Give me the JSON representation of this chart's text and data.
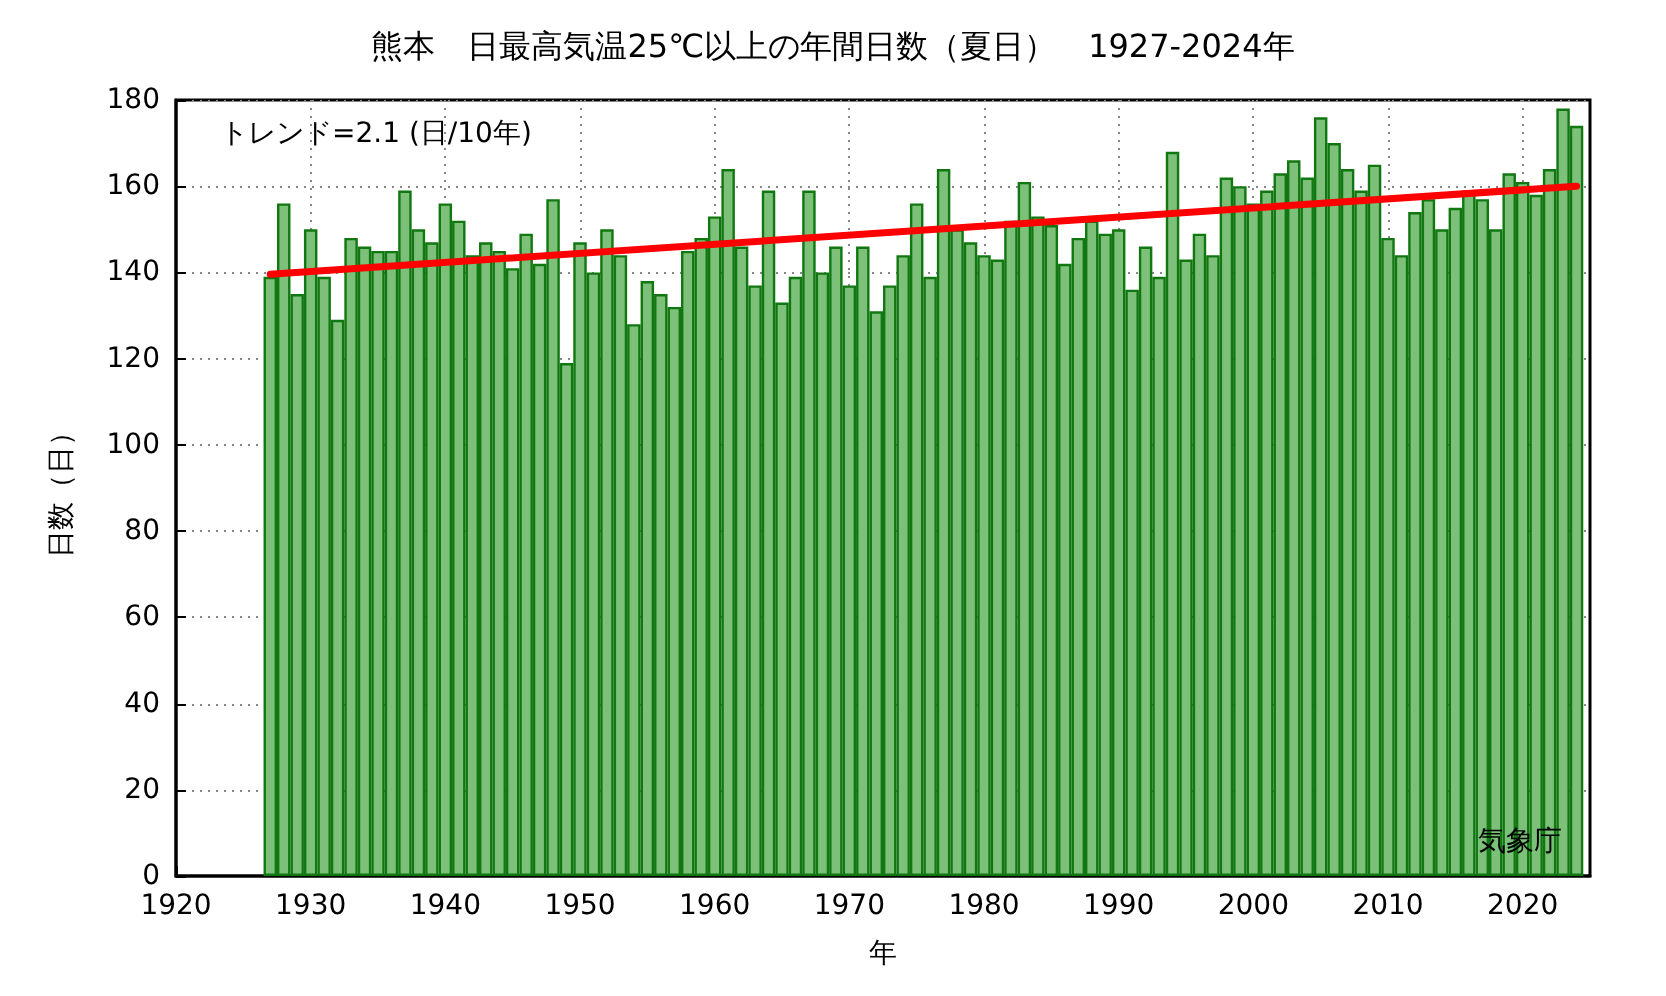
{
  "chart_data": {
    "type": "bar",
    "title": "熊本　日最高気温25℃以上の年間日数（夏日）　1927-2024年",
    "xlabel": "年",
    "ylabel": "日数（日）",
    "annotations": [
      "トレンド=2.1 (日/10年)",
      "気象庁"
    ],
    "series": [
      {
        "color": "#7cc07a",
        "x": [
          1927,
          1928,
          1929,
          1930,
          1931,
          1932,
          1933,
          1934,
          1935,
          1936,
          1937,
          1938,
          1939,
          1940,
          1941,
          1942,
          1943,
          1944,
          1945,
          1946,
          1947,
          1948,
          1949,
          1950,
          1951,
          1952,
          1953,
          1954,
          1955,
          1956,
          1957,
          1958,
          1959,
          1960,
          1961,
          1962,
          1963,
          1964,
          1965,
          1966,
          1967,
          1968,
          1969,
          1970,
          1971,
          1972,
          1973,
          1974,
          1975,
          1976,
          1977,
          1978,
          1979,
          1980,
          1981,
          1982,
          1983,
          1984,
          1985,
          1986,
          1987,
          1988,
          1989,
          1990,
          1991,
          1992,
          1993,
          1994,
          1995,
          1996,
          1997,
          1998,
          1999,
          2000,
          2001,
          2002,
          2003,
          2004,
          2005,
          2006,
          2007,
          2008,
          2009,
          2010,
          2011,
          2012,
          2013,
          2014,
          2015,
          2016,
          2017,
          2018,
          2019,
          2020,
          2021,
          2022,
          2023,
          2024
        ],
        "values": [
          139,
          156,
          135,
          150,
          139,
          129,
          148,
          146,
          145,
          145,
          159,
          150,
          147,
          156,
          152,
          144,
          147,
          145,
          141,
          149,
          142,
          157,
          119,
          147,
          140,
          150,
          144,
          128,
          138,
          135,
          132,
          145,
          148,
          153,
          164,
          146,
          137,
          159,
          133,
          139,
          159,
          140,
          146,
          137,
          146,
          131,
          137,
          144,
          156,
          139,
          164,
          150,
          147,
          144,
          143,
          152,
          161,
          153,
          151,
          142,
          148,
          152,
          149,
          150,
          136,
          146,
          139,
          168,
          143,
          149,
          144,
          162,
          160,
          156,
          159,
          163,
          166,
          162,
          176,
          170,
          164,
          159,
          165,
          148,
          144,
          154,
          157,
          150,
          155,
          159,
          157,
          150,
          163,
          161,
          158,
          164,
          178,
          174
        ]
      },
      {
        "type": "line",
        "color": "#ff0000",
        "x": [
          1927,
          2024
        ],
        "values": [
          139.6,
          160
        ]
      }
    ],
    "xlim": [
      1920,
      2025
    ],
    "xticks": [
      1920,
      1930,
      1940,
      1950,
      1960,
      1970,
      1980,
      1990,
      2000,
      2010,
      2020
    ],
    "ylim": [
      0,
      180
    ],
    "yticks": [
      0,
      20,
      40,
      60,
      80,
      100,
      120,
      140,
      160,
      180
    ],
    "grid": true,
    "marker": "none",
    "line_style": "solid"
  }
}
